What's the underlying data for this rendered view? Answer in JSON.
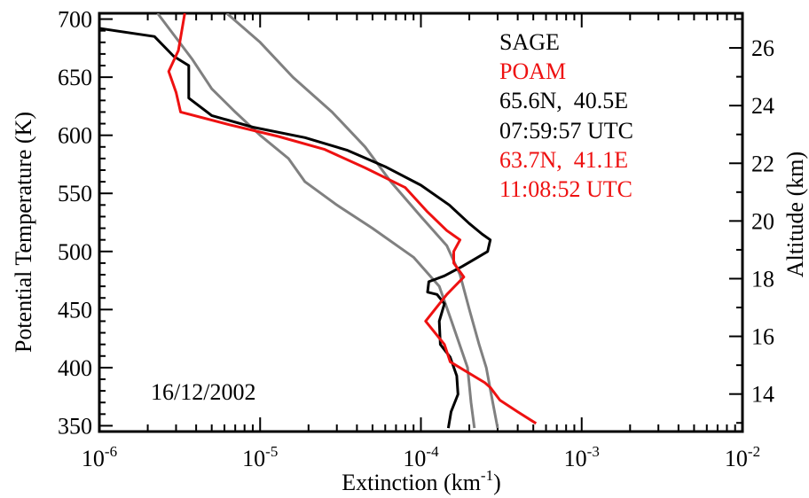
{
  "chart_data": {
    "type": "line",
    "xlabel": "Extinction (km",
    "xlabel_sup": "-1",
    "xlabel_close": ")",
    "ylabel": "Potential Temperature (K)",
    "y2label": "Altitude (km)",
    "x_scale": "log",
    "xlim": [
      1e-06,
      0.01
    ],
    "ylim": [
      345,
      705
    ],
    "y2lim": [
      12.7,
      27.2
    ],
    "x_ticks": [
      {
        "value": 1e-06,
        "base": "10",
        "exp": "-6"
      },
      {
        "value": 1e-05,
        "base": "10",
        "exp": "-5"
      },
      {
        "value": 0.0001,
        "base": "10",
        "exp": "-4"
      },
      {
        "value": 0.001,
        "base": "10",
        "exp": "-3"
      },
      {
        "value": 0.01,
        "base": "10",
        "exp": "-2"
      }
    ],
    "y_ticks": [
      "350",
      "400",
      "450",
      "500",
      "550",
      "600",
      "650",
      "700"
    ],
    "y2_ticks": [
      "14",
      "16",
      "18",
      "20",
      "22",
      "24",
      "26"
    ],
    "legend": {
      "instrument1": "SAGE",
      "instrument2": "POAM",
      "sage_location": "65.6N,  40.5E",
      "sage_time": "07:59:57 UTC",
      "poam_location": "63.7N,  41.1E",
      "poam_time": "11:08:52 UTC"
    },
    "date_label": "16/12/2002",
    "colors": {
      "sage": "#000000",
      "poam": "#ee1111",
      "bounds": "#808080"
    },
    "series": [
      {
        "key": "sage",
        "points": [
          [
            1e-06,
            692
          ],
          [
            2.2e-06,
            685
          ],
          [
            2.9e-06,
            668
          ],
          [
            3.6e-06,
            660
          ],
          [
            3.6e-06,
            640
          ],
          [
            3.6e-06,
            632
          ],
          [
            5e-06,
            617
          ],
          [
            9e-06,
            607
          ],
          [
            1.9e-05,
            598
          ],
          [
            3.5e-05,
            587
          ],
          [
            6e-05,
            573
          ],
          [
            0.0001,
            557
          ],
          [
            0.00015,
            540
          ],
          [
            0.0002,
            524
          ],
          [
            0.00024,
            515
          ],
          [
            0.00027,
            510
          ],
          [
            0.00026,
            500
          ],
          [
            0.00022,
            494
          ],
          [
            0.00018,
            487
          ],
          [
            0.00014,
            479
          ],
          [
            0.000112,
            474
          ],
          [
            0.00011,
            465
          ],
          [
            0.000126,
            463
          ],
          [
            0.00014,
            455
          ],
          [
            0.00013,
            440
          ],
          [
            0.000132,
            420
          ],
          [
            0.000152,
            409
          ],
          [
            0.000167,
            393
          ],
          [
            0.00017,
            377
          ],
          [
            0.000154,
            362
          ],
          [
            0.000148,
            348
          ]
        ]
      },
      {
        "key": "poam",
        "points": [
          [
            3.4e-06,
            705
          ],
          [
            3.1e-06,
            673
          ],
          [
            2.7e-06,
            655
          ],
          [
            3e-06,
            637
          ],
          [
            3.2e-06,
            620
          ],
          [
            6.5e-06,
            609
          ],
          [
            1.3e-05,
            599
          ],
          [
            2.5e-05,
            588
          ],
          [
            4.5e-05,
            572
          ],
          [
            8e-05,
            555
          ],
          [
            0.00011,
            534
          ],
          [
            0.000145,
            518
          ],
          [
            0.000175,
            510
          ],
          [
            0.00016,
            500
          ],
          [
            0.00016,
            490
          ],
          [
            0.000185,
            478
          ],
          [
            0.000145,
            463
          ],
          [
            0.000107,
            440
          ],
          [
            0.00014,
            420
          ],
          [
            0.000152,
            405
          ],
          [
            0.00025,
            387
          ],
          [
            0.00027,
            383
          ],
          [
            0.00031,
            372
          ],
          [
            0.0004,
            362
          ],
          [
            0.00052,
            352
          ]
        ]
      },
      {
        "key": "lower",
        "points": [
          [
            2.3e-06,
            705
          ],
          [
            3.8e-06,
            665
          ],
          [
            5e-06,
            640
          ],
          [
            7e-06,
            620
          ],
          [
            1e-05,
            600
          ],
          [
            1.5e-05,
            580
          ],
          [
            1.9e-05,
            560
          ],
          [
            3e-05,
            540
          ],
          [
            5e-05,
            520
          ],
          [
            9e-05,
            495
          ],
          [
            0.00013,
            470
          ],
          [
            0.000155,
            440
          ],
          [
            0.000195,
            400
          ],
          [
            0.000205,
            370
          ],
          [
            0.000215,
            348
          ]
        ]
      },
      {
        "key": "upper",
        "points": [
          [
            6.2e-06,
            705
          ],
          [
            1e-05,
            680
          ],
          [
            1.6e-05,
            650
          ],
          [
            2.8e-05,
            620
          ],
          [
            4.5e-05,
            590
          ],
          [
            6.5e-05,
            560
          ],
          [
            0.0001,
            530
          ],
          [
            0.000145,
            505
          ],
          [
            0.000175,
            480
          ],
          [
            0.0002,
            450
          ],
          [
            0.00023,
            420
          ],
          [
            0.000255,
            400
          ],
          [
            0.00028,
            370
          ],
          [
            0.0003,
            348
          ]
        ]
      }
    ]
  }
}
